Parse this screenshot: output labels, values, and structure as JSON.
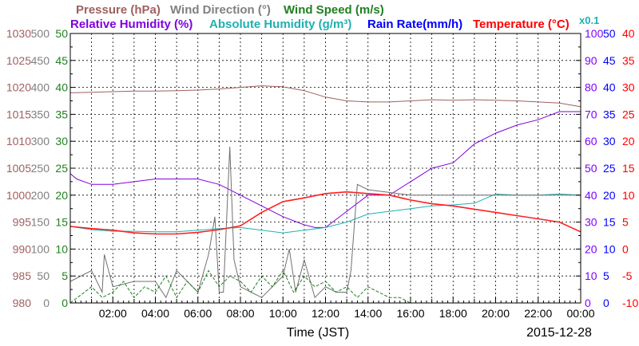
{
  "chart_data": {
    "type": "line",
    "legend": {
      "row1": [
        "Pressure (hPa)",
        "Wind Direction (°)",
        "Wind Speed (m/s)"
      ],
      "row2": [
        "Relative Humidity (%)",
        "Absolute Humidity (g/m³)",
        "Rain Rate(mm/h)",
        "Temperature (°C)"
      ],
      "scale_note": "x0.1"
    },
    "xlabel": "Time (JST)",
    "date": "2015-12-28",
    "x_ticks": [
      "02:00",
      "04:00",
      "06:00",
      "08:00",
      "10:00",
      "12:00",
      "14:00",
      "16:00",
      "18:00",
      "20:00",
      "22:00",
      "00:00"
    ],
    "xlim": [
      0,
      24
    ],
    "axes": {
      "pressure": {
        "ylim": [
          980,
          1030
        ],
        "ticks": [
          "980",
          "985",
          "990",
          "995",
          "1000",
          "1005",
          "1010",
          "1015",
          "1020",
          "1025",
          "1030"
        ],
        "color": "#a06060"
      },
      "wind_direction": {
        "ylim": [
          0,
          500
        ],
        "ticks": [
          "0",
          "50",
          "100",
          "150",
          "200",
          "250",
          "300",
          "350",
          "400",
          "450",
          "500"
        ],
        "color": "#808080"
      },
      "wind_speed": {
        "ylim": [
          0,
          50
        ],
        "ticks": [
          "0",
          "5",
          "10",
          "15",
          "20",
          "25",
          "30",
          "35",
          "40",
          "45",
          "50"
        ],
        "color": "#208020"
      },
      "humidity": {
        "ylim": [
          0,
          100
        ],
        "ticks": [
          "0",
          "10",
          "20",
          "30",
          "40",
          "50",
          "60",
          "70",
          "80",
          "90",
          "100"
        ],
        "color": "#8000ff"
      },
      "rain_rate": {
        "ylim": [
          0,
          50
        ],
        "ticks": [
          "0",
          "5",
          "10",
          "15",
          "20",
          "25",
          "30",
          "35",
          "40",
          "45",
          "50"
        ],
        "color": "#0000ff"
      },
      "temperature": {
        "ylim": [
          -10,
          40
        ],
        "ticks": [
          "-10",
          "-5",
          "0",
          "5",
          "10",
          "15",
          "20",
          "25",
          "30",
          "35",
          "40"
        ],
        "color": "#ff0000"
      }
    },
    "series": [
      {
        "key": "pressure",
        "name": "Pressure (hPa)",
        "axis": "pressure",
        "color": "#a06060",
        "x": [
          0,
          1,
          2,
          3,
          4,
          5,
          6,
          7,
          8,
          9,
          10,
          11,
          12,
          13,
          14,
          15,
          16,
          17,
          18,
          19,
          20,
          21,
          22,
          23,
          24
        ],
        "y": [
          1019.0,
          1019.1,
          1019.2,
          1019.3,
          1019.3,
          1019.4,
          1019.5,
          1019.7,
          1020.0,
          1020.3,
          1020.1,
          1019.4,
          1018.2,
          1017.5,
          1017.3,
          1017.3,
          1017.5,
          1017.7,
          1017.6,
          1017.7,
          1017.6,
          1017.5,
          1017.3,
          1017.1,
          1016.4
        ]
      },
      {
        "key": "rh",
        "name": "Relative Humidity (%)",
        "axis": "humidity",
        "color": "#8000e0",
        "x": [
          0,
          0.3,
          1,
          2,
          3,
          4,
          5,
          6,
          7,
          8,
          9,
          10,
          11,
          11.5,
          12,
          13,
          14,
          15,
          16,
          17,
          18,
          19,
          20,
          21,
          22,
          23,
          24
        ],
        "y": [
          48,
          46,
          44,
          44,
          45,
          46,
          46,
          46,
          44,
          40,
          36,
          32,
          29,
          28,
          28,
          34,
          40,
          40,
          45,
          50,
          52,
          59,
          63,
          66,
          68,
          71,
          71
        ]
      },
      {
        "key": "ah",
        "name": "Absolute Humidity (g/m³)",
        "axis": "rain_rate",
        "color": "#20b0b0",
        "x": [
          0,
          1,
          2,
          3,
          4,
          5,
          6,
          7,
          8,
          9,
          10,
          11,
          12,
          13,
          14,
          15,
          16,
          17,
          18,
          19,
          20,
          21,
          22,
          23,
          24
        ],
        "y": [
          14.2,
          13.6,
          13.3,
          13.3,
          13.2,
          13.2,
          13.5,
          13.8,
          14.0,
          13.5,
          13.0,
          13.5,
          14.0,
          15.0,
          16.5,
          17.0,
          17.5,
          18.0,
          18.2,
          18.5,
          20.2,
          20.0,
          20.0,
          20.2,
          20.0
        ]
      },
      {
        "key": "temp",
        "name": "Temperature (°C)",
        "axis": "temperature",
        "color": "#ff2020",
        "x": [
          0,
          1,
          2,
          3,
          4,
          5,
          6,
          7,
          8,
          9,
          10,
          11,
          12,
          13,
          14,
          15,
          16,
          17,
          18,
          19,
          20,
          21,
          22,
          23,
          24
        ],
        "y": [
          4.2,
          3.8,
          3.5,
          3.0,
          2.8,
          2.8,
          3.1,
          3.6,
          4.3,
          6.8,
          8.8,
          9.5,
          10.3,
          10.6,
          10.3,
          10.0,
          9.1,
          8.4,
          8.0,
          7.4,
          6.8,
          6.2,
          5.6,
          5.0,
          3.2
        ]
      },
      {
        "key": "wdir",
        "name": "Wind Direction (°)",
        "axis": "wind_direction",
        "color": "#707070",
        "x": [
          0,
          1,
          1.5,
          1.6,
          2,
          3,
          4,
          4.5,
          5,
          6,
          6.5,
          6.8,
          7,
          7.2,
          7.5,
          7.7,
          8,
          8.5,
          9,
          10,
          10.3,
          10.6,
          11,
          11.5,
          12,
          12.5,
          13,
          13.2,
          13.5,
          14,
          15,
          16,
          17,
          18,
          19,
          20,
          21,
          22,
          23,
          24
        ],
        "y": [
          40,
          60,
          20,
          90,
          30,
          40,
          40,
          10,
          60,
          20,
          90,
          160,
          20,
          20,
          290,
          80,
          30,
          20,
          10,
          50,
          100,
          20,
          80,
          10,
          30,
          20,
          20,
          60,
          220,
          210,
          205,
          200,
          200,
          200,
          200,
          200,
          200,
          200,
          200,
          200
        ]
      },
      {
        "key": "wspd",
        "name": "Wind Speed (m/s)",
        "axis": "wind_speed",
        "color": "#208020",
        "x": [
          0,
          0.5,
          1,
          1.5,
          2,
          2.5,
          3,
          3.5,
          4,
          4.5,
          5,
          5.5,
          6,
          6.5,
          7,
          7.5,
          8,
          8.5,
          9,
          9.5,
          10,
          10.5,
          11,
          11.5,
          12,
          12.5,
          13,
          13.5,
          14,
          14.5,
          15,
          15.5,
          16,
          17,
          18,
          19,
          20,
          21,
          22,
          23,
          24
        ],
        "y": [
          0,
          1.5,
          3,
          1,
          2,
          4,
          1,
          3,
          2,
          5,
          1,
          4,
          2,
          6,
          3,
          5,
          4,
          2,
          5,
          3,
          6,
          2,
          5,
          3,
          4,
          2,
          3,
          1,
          3,
          2,
          1,
          1,
          0,
          0,
          0,
          0,
          0,
          0,
          0,
          0,
          0
        ]
      },
      {
        "key": "rain",
        "name": "Rain Rate(mm/h)",
        "axis": "rain_rate",
        "color": "#0000ff",
        "x": [
          0,
          24
        ],
        "y": [
          0,
          0
        ]
      }
    ]
  }
}
